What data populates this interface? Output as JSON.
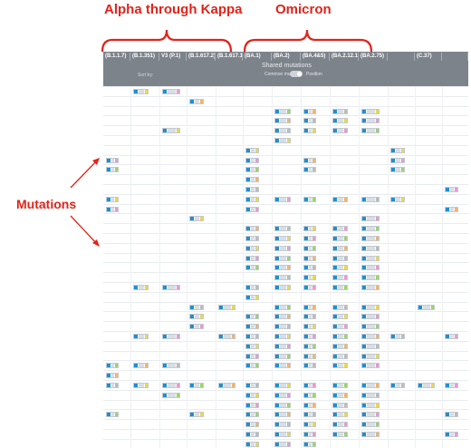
{
  "annotations": {
    "alpha_title": "Alpha through Kappa",
    "omicron_title": "Omicron",
    "mutations_label": "Mutations"
  },
  "table": {
    "columns": [
      "(B.1.1.7)",
      "(B.1.351)",
      "V3 (P.1)",
      "(B.1.617.2)",
      "(B.1.617.1)",
      "(BA.1)",
      "(BA.2)",
      "(BA.4&5)",
      "(BA.2.12.1)",
      "(BA.2.75)",
      "",
      "(C.37)",
      ""
    ],
    "shared_label": "Shared mutations",
    "sort_label": "Sort by:",
    "common_label": "Common muts",
    "position_label": "Position"
  },
  "colors": {
    "annotation_red": "#e2231a",
    "header_grey": "#7d838a",
    "chip_blue": "#1f8ed3",
    "tail_grey": "#bbbbbb",
    "tail_yellow": "#e8d84a",
    "tail_pink": "#e79ad0",
    "tail_green": "#9bd36b",
    "tail_orange": "#f2b36b"
  }
}
